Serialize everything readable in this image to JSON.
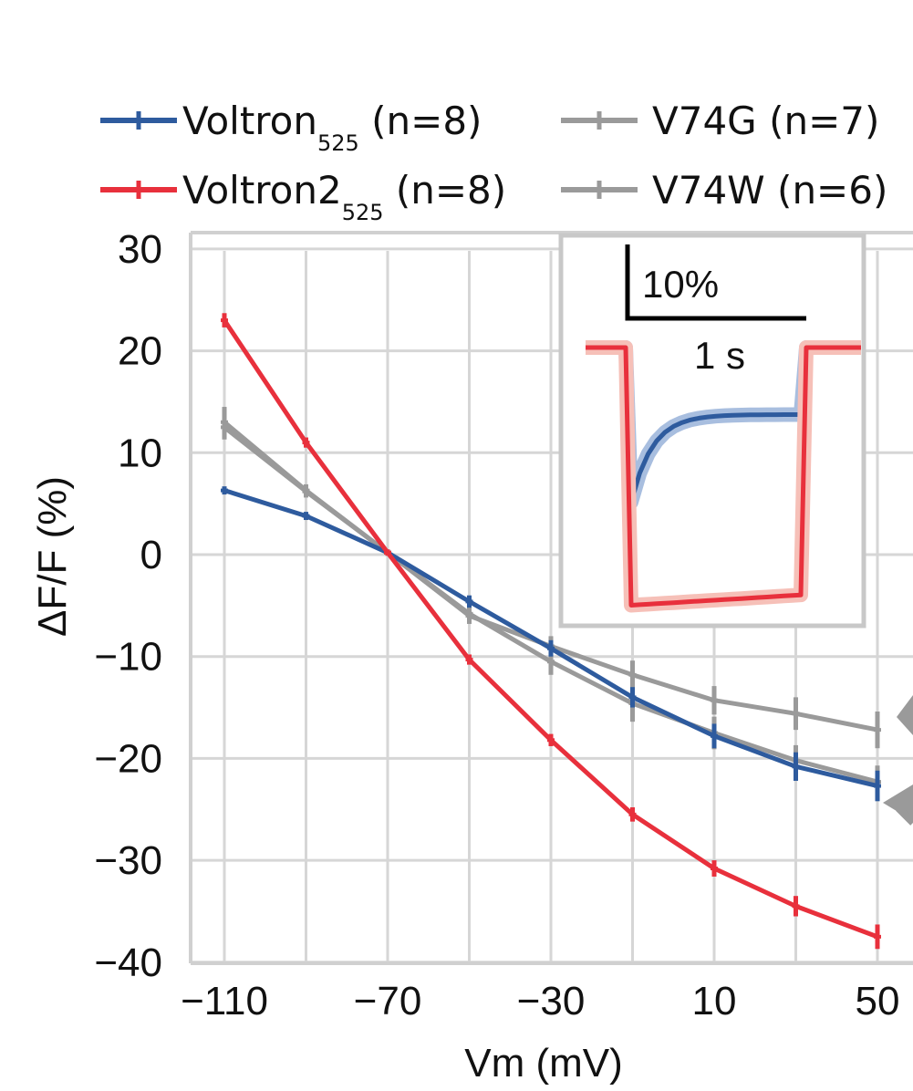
{
  "chart_data": {
    "type": "line",
    "xlabel": "Vm (mV)",
    "ylabel": "ΔF/F (%)",
    "xlim": [
      -118,
      58
    ],
    "ylim": [
      -40,
      30
    ],
    "x_ticks": [
      -110,
      -70,
      -30,
      10,
      50
    ],
    "x_tick_labels": [
      "−110",
      "−70",
      "−30",
      "10",
      "50"
    ],
    "y_ticks": [
      30,
      20,
      10,
      0,
      -10,
      -20,
      -30,
      -40
    ],
    "y_tick_labels": [
      "30",
      "20",
      "10",
      "0",
      "−10",
      "−20",
      "−30",
      "−40"
    ],
    "x_grid": [
      -110,
      -90,
      -70,
      -50,
      -30,
      -10,
      10,
      30,
      50
    ],
    "y_grid": [
      30,
      20,
      10,
      0,
      -10,
      -20,
      -30,
      -40
    ],
    "grid": true,
    "legend_position": "top",
    "series": [
      {
        "name": "V74G (n=7)",
        "color": "#9a9a9a",
        "x": [
          -110,
          -90,
          -70,
          -50,
          -30,
          -10,
          10,
          30,
          50
        ],
        "y": [
          12.5,
          6.2,
          0.2,
          -6.0,
          -9.0,
          -11.8,
          -14.3,
          -15.6,
          -17.2
        ],
        "err": [
          1.2,
          0.6,
          0.3,
          0.8,
          1.0,
          1.4,
          1.4,
          1.6,
          1.8
        ]
      },
      {
        "name": "V74W (n=6)",
        "color": "#9a9a9a",
        "x": [
          -110,
          -90,
          -70,
          -50,
          -30,
          -10,
          10,
          30,
          50
        ],
        "y": [
          13.0,
          6.3,
          0.2,
          -5.8,
          -10.5,
          -14.6,
          -17.5,
          -20.2,
          -22.3
        ],
        "err": [
          1.5,
          0.6,
          0.3,
          0.9,
          1.3,
          1.8,
          1.6,
          1.5,
          1.6
        ]
      },
      {
        "name": "Voltron525 (n=8)",
        "color": "#2e5b9e",
        "x": [
          -110,
          -90,
          -70,
          -50,
          -30,
          -10,
          10,
          30,
          50
        ],
        "y": [
          6.3,
          3.8,
          0.2,
          -4.6,
          -9.2,
          -14.0,
          -17.8,
          -20.8,
          -22.7
        ],
        "err": [
          0.4,
          0.4,
          0.3,
          0.6,
          0.8,
          1.0,
          1.2,
          1.4,
          1.5
        ]
      },
      {
        "name": "Voltron2525 (n=8)",
        "color": "#e8303c",
        "x": [
          -110,
          -90,
          -70,
          -50,
          -30,
          -10,
          10,
          30,
          50
        ],
        "y": [
          23.0,
          11.0,
          0.2,
          -10.3,
          -18.2,
          -25.5,
          -30.8,
          -34.5,
          -37.5
        ],
        "err": [
          0.7,
          0.5,
          0.3,
          0.5,
          0.6,
          0.7,
          0.8,
          1.0,
          1.2
        ]
      }
    ],
    "legend": [
      {
        "label": "Voltron",
        "sub": "525",
        "suffix": " (n=8)",
        "color": "#2e5b9e"
      },
      {
        "label": "V74G (n=7)",
        "sub": "",
        "suffix": "",
        "color": "#9a9a9a"
      },
      {
        "label": "Voltron2",
        "sub": "525",
        "suffix": " (n=8)",
        "color": "#e8303c"
      },
      {
        "label": "V74W (n=6)",
        "sub": "",
        "suffix": "",
        "color": "#9a9a9a"
      }
    ],
    "inset": {
      "scale_y_label": "10%",
      "scale_x_label": "1 s",
      "traces": [
        {
          "name": "Voltron525",
          "color": "#2e5b9e",
          "band_color": "#a8bedf",
          "baseline": 0,
          "step_min": -15,
          "plateau": -6.5
        },
        {
          "name": "Voltron2525",
          "color": "#e8303c",
          "band_color": "#f6c0b8",
          "baseline": 0,
          "step_min": -25,
          "plateau": -24
        }
      ]
    }
  }
}
